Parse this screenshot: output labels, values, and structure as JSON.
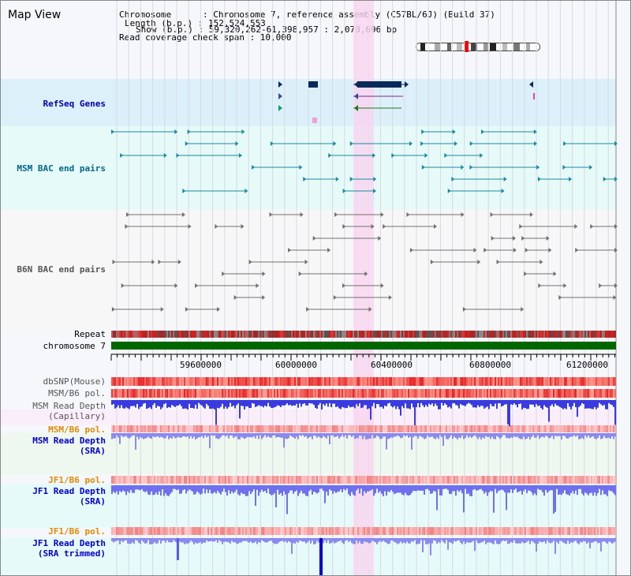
{
  "view_title": "Map View",
  "info": {
    "chromosome": "Chromosome      : Chromosome 7, reference assembly (C57BL/6J) (Build 37)",
    "length": "Length (b.p.) : 152,524,553",
    "show": "Show (b.p.) : 59,320,262-61,398,957 : 2,078,696 bp",
    "coverage": "Read coverage check span : 10,000"
  },
  "tracks": {
    "refseq": "RefSeq Genes",
    "msm_bac": "MSM BAC end pairs",
    "b6n_bac": "B6N BAC end pairs",
    "repeat": "Repeat",
    "chromosome": "chromosome 7",
    "dbsnp": "dbSNP(Mouse)",
    "msm_b6_pol": "MSM/B6 pol.",
    "msm_read_depth_cap": "MSM Read Depth\n(Capillary)",
    "msm_b6_pol2": "MSM/B6 pol.",
    "msm_read_depth_sra": "MSM Read Depth\n(SRA)",
    "jf1_b6_pol": "JF1/B6 pol.",
    "jf1_read_depth_sra": "JF1 Read Depth\n(SRA)",
    "jf1_b6_pol2": "JF1/B6 pol.",
    "jf1_read_depth_trim": "JF1 Read Depth\n(SRA trimmed)"
  },
  "axis_ticks": [
    "59600000",
    "60000000",
    "60400000",
    "60800000",
    "61200000"
  ],
  "colors": {
    "refseq_label": "#0000aa",
    "msm_label": "#006688",
    "b6n_label": "#555555",
    "orange_label": "#e08a00",
    "blue_label": "#0000cc",
    "highlight": "#f9d4f0",
    "chromosome_bar": "#006600"
  }
}
